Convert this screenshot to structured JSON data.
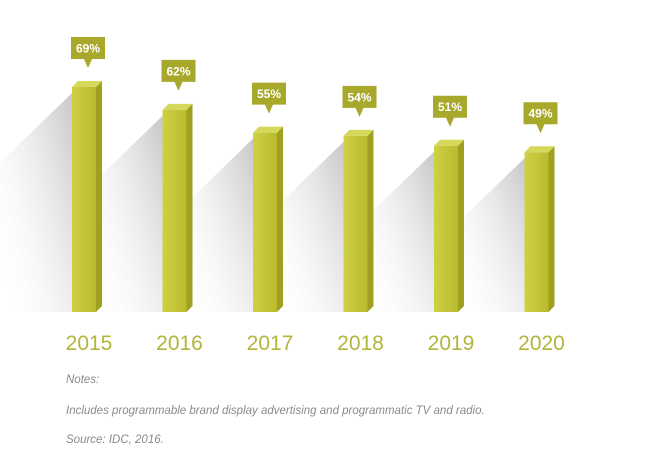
{
  "chart_data": {
    "type": "bar",
    "categories": [
      "2015",
      "2016",
      "2017",
      "2018",
      "2019",
      "2020"
    ],
    "values": [
      69,
      62,
      55,
      54,
      51,
      49
    ],
    "data_labels": [
      "69%",
      "62%",
      "55%",
      "54%",
      "51%",
      "49%"
    ],
    "unit": "%",
    "title": "",
    "xlabel": "",
    "ylabel": "",
    "ylim": [
      0,
      69
    ],
    "grid": false,
    "legend": "none",
    "style": "3d-columns-with-callout-labels"
  },
  "notes": {
    "heading": "Notes:",
    "text": "Includes programmable brand display advertising and programmatic TV and radio.",
    "source": "Source: IDC, 2016."
  },
  "colors": {
    "bar_front": "#c3c432",
    "bar_side": "#9fa022",
    "bar_top": "#d6d85a",
    "label_box": "#a8a82a",
    "label_text": "#ffffff",
    "year_text": "#b3b43a",
    "notes_text": "#8a8a8a"
  }
}
